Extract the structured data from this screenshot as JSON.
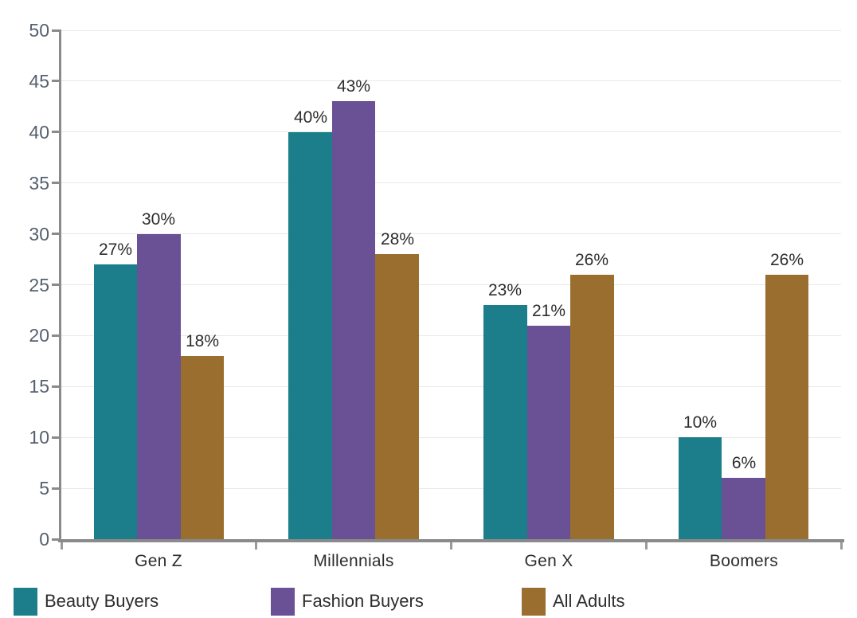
{
  "chart_data": {
    "type": "bar",
    "categories": [
      "Gen Z",
      "Millennials",
      "Gen X",
      "Boomers"
    ],
    "series": [
      {
        "name": "Beauty Buyers",
        "color": "#1b7e8a",
        "values": [
          27,
          40,
          23,
          10
        ]
      },
      {
        "name": "Fashion Buyers",
        "color": "#6a5094",
        "values": [
          30,
          43,
          21,
          6
        ]
      },
      {
        "name": "All Adults",
        "color": "#996e2e",
        "values": [
          18,
          28,
          26,
          26
        ]
      }
    ],
    "data_labels": [
      [
        "27%",
        "40%",
        "23%",
        "10%"
      ],
      [
        "30%",
        "43%",
        "21%",
        "6%"
      ],
      [
        "18%",
        "28%",
        "26%",
        "26%"
      ]
    ],
    "value_suffix": "%",
    "ylim": [
      0,
      50
    ],
    "ytick_step": 5,
    "yticks": [
      "0",
      "5",
      "10",
      "15",
      "20",
      "25",
      "30",
      "35",
      "40",
      "45",
      "50"
    ],
    "grid": true,
    "legend_position": "bottom",
    "legend": [
      "Beauty Buyers",
      "Fashion Buyers",
      "All Adults"
    ],
    "colors": {
      "background": "#ffffff",
      "axis_line": "#8a8a8a",
      "tick_mark": "#9a9a9a",
      "gridline": "#e9e9e9",
      "ytick_label": "#54606e",
      "data_label": "#2d2d2d",
      "category_label": "#2d2d2d",
      "legend_label": "#2d2d2d"
    }
  }
}
